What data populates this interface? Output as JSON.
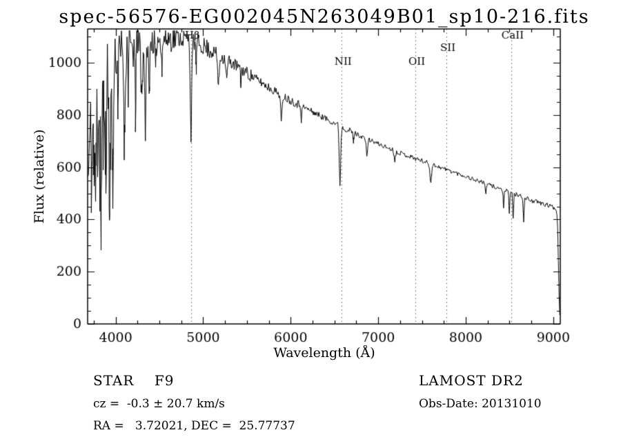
{
  "chart_data": {
    "type": "line",
    "title": "spec-56576-EG002045N263049B01_sp10-216.fits",
    "xlabel": "Wavelength (Å)",
    "ylabel": "Flux (relative)",
    "xlim": [
      3680,
      9080
    ],
    "ylim": [
      0,
      1130
    ],
    "xticks": [
      4000,
      5000,
      6000,
      7000,
      8000,
      9000
    ],
    "yticks": [
      0,
      200,
      400,
      600,
      800,
      1000
    ],
    "x_minor_step": 250,
    "y_minor_step": 50,
    "grid": false,
    "legend": "none",
    "line_color": "#000000",
    "frame_color": "#000000",
    "marker_guide_color": "#555555",
    "spectral_line_markers": [
      {
        "label": "Hβ",
        "wavelength": 4861,
        "label_flux": 1092
      },
      {
        "label": "NII",
        "wavelength": 6583,
        "label_flux": 992
      },
      {
        "label": "OII",
        "wavelength": 7425,
        "label_flux": 992
      },
      {
        "label": "SII",
        "wavelength": 7780,
        "label_flux": 1045
      },
      {
        "label": "CaII",
        "wavelength": 8520,
        "label_flux": 1092
      }
    ],
    "series_model": {
      "description": "Single black spectrum trace: interpolated continuum minus gaussian absorption lines plus seeded uniform noise",
      "continuum_format": "[wavelength_A, flux]",
      "continuum": [
        [
          3690,
          560
        ],
        [
          3705,
          690
        ],
        [
          3725,
          800
        ],
        [
          3755,
          860
        ],
        [
          3800,
          905
        ],
        [
          3850,
          950
        ],
        [
          3900,
          990
        ],
        [
          3950,
          1010
        ],
        [
          4000,
          1030
        ],
        [
          4100,
          1050
        ],
        [
          4200,
          1062
        ],
        [
          4300,
          1072
        ],
        [
          4400,
          1082
        ],
        [
          4500,
          1090
        ],
        [
          4650,
          1098
        ],
        [
          4800,
          1094
        ],
        [
          4900,
          1082
        ],
        [
          5000,
          1065
        ],
        [
          5100,
          1046
        ],
        [
          5200,
          1026
        ],
        [
          5300,
          1006
        ],
        [
          5400,
          985
        ],
        [
          5500,
          962
        ],
        [
          5600,
          940
        ],
        [
          5700,
          917
        ],
        [
          5800,
          896
        ],
        [
          5900,
          876
        ],
        [
          6000,
          857
        ],
        [
          6100,
          840
        ],
        [
          6200,
          822
        ],
        [
          6300,
          804
        ],
        [
          6400,
          787
        ],
        [
          6500,
          770
        ],
        [
          6600,
          752
        ],
        [
          6700,
          736
        ],
        [
          6800,
          720
        ],
        [
          6900,
          705
        ],
        [
          7000,
          690
        ],
        [
          7100,
          676
        ],
        [
          7200,
          662
        ],
        [
          7300,
          649
        ],
        [
          7400,
          637
        ],
        [
          7500,
          625
        ],
        [
          7600,
          613
        ],
        [
          7700,
          601
        ],
        [
          7800,
          589
        ],
        [
          7900,
          577
        ],
        [
          8000,
          565
        ],
        [
          8100,
          553
        ],
        [
          8200,
          541
        ],
        [
          8300,
          529
        ],
        [
          8400,
          517
        ],
        [
          8500,
          505
        ],
        [
          8600,
          492
        ],
        [
          8700,
          480
        ],
        [
          8800,
          468
        ],
        [
          8900,
          458
        ],
        [
          8980,
          450
        ],
        [
          9030,
          443
        ],
        [
          9048,
          400
        ],
        [
          9058,
          250
        ],
        [
          9068,
          90
        ],
        [
          9076,
          20
        ],
        [
          9080,
          5
        ]
      ],
      "absorption_lines_format": "[center_A, depth_flux, sigma_A]",
      "absorption_lines": [
        [
          3727,
          280,
          6
        ],
        [
          3750,
          330,
          5
        ],
        [
          3771,
          360,
          5
        ],
        [
          3798,
          420,
          5
        ],
        [
          3820,
          300,
          5
        ],
        [
          3835,
          520,
          6
        ],
        [
          3860,
          250,
          5
        ],
        [
          3889,
          480,
          6
        ],
        [
          3933,
          640,
          7
        ],
        [
          3968,
          560,
          7
        ],
        [
          4026,
          180,
          5
        ],
        [
          4101,
          360,
          7
        ],
        [
          4144,
          150,
          4
        ],
        [
          4226,
          260,
          5
        ],
        [
          4300,
          190,
          9
        ],
        [
          4340,
          340,
          7
        ],
        [
          4383,
          220,
          5
        ],
        [
          4457,
          140,
          4
        ],
        [
          4530,
          120,
          4
        ],
        [
          4861,
          355,
          8
        ],
        [
          4920,
          110,
          4
        ],
        [
          5175,
          115,
          9
        ],
        [
          5269,
          75,
          7
        ],
        [
          5430,
          60,
          5
        ],
        [
          5893,
          105,
          7
        ],
        [
          6122,
          55,
          5
        ],
        [
          6563,
          225,
          8
        ],
        [
          6717,
          40,
          4
        ],
        [
          6870,
          60,
          9
        ],
        [
          7190,
          35,
          8
        ],
        [
          7600,
          65,
          10
        ],
        [
          8230,
          40,
          5
        ],
        [
          8433,
          70,
          5
        ],
        [
          8498,
          78,
          5
        ],
        [
          8542,
          98,
          5
        ],
        [
          8662,
          88,
          5
        ]
      ],
      "noise_regions_format": "[from_A, to_A, amplitude_flux]",
      "noise_regions": [
        [
          3680,
          3950,
          190
        ],
        [
          3950,
          4300,
          95
        ],
        [
          4300,
          4700,
          55
        ],
        [
          4700,
          5100,
          36
        ],
        [
          5100,
          5600,
          25
        ],
        [
          5600,
          6100,
          17
        ],
        [
          6100,
          6700,
          12
        ],
        [
          6700,
          7600,
          9
        ],
        [
          7600,
          8400,
          8
        ],
        [
          8400,
          9080,
          9
        ]
      ],
      "noise_seed": 11,
      "sample_step_A": 8
    },
    "annotations": {
      "class_label": "STAR    F9",
      "survey_label": "LAMOST DR2",
      "cz_label": "cz =  -0.3 ± 20.7 km/s",
      "obsdate_label": "Obs-Date: 20131010",
      "coords_label": "RA =   3.72021, DEC =  25.77737"
    }
  }
}
